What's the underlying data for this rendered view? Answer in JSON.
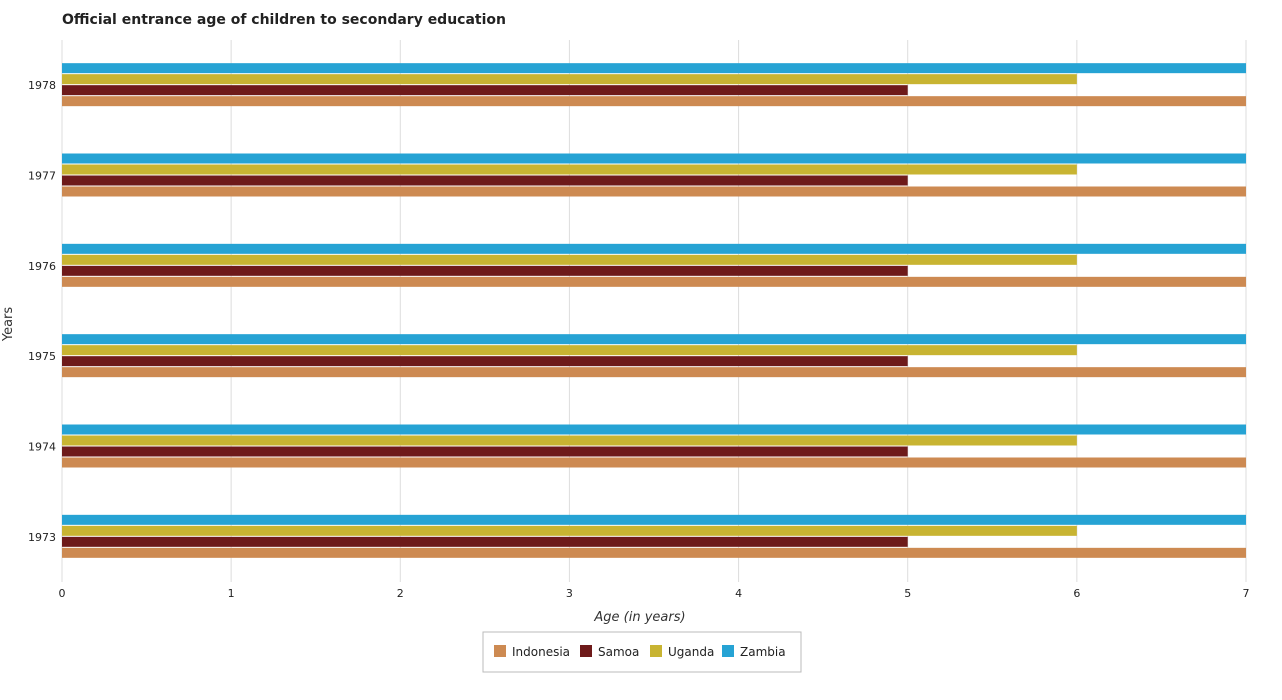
{
  "chart_data": {
    "type": "bar",
    "orientation": "horizontal",
    "title": "Official entrance age of children to secondary education",
    "xlabel": "Age (in years)",
    "ylabel": "Years",
    "xlim": [
      0,
      7
    ],
    "xticks": [
      "0",
      "1",
      "2",
      "3",
      "4",
      "5",
      "6",
      "7"
    ],
    "categories": [
      "1973",
      "1974",
      "1975",
      "1976",
      "1977",
      "1978"
    ],
    "series": [
      {
        "name": "Indonesia",
        "color": "#cd8a52",
        "values": [
          7,
          7,
          7,
          7,
          7,
          7
        ]
      },
      {
        "name": "Samoa",
        "color": "#6e1a1a",
        "values": [
          5,
          5,
          5,
          5,
          5,
          5
        ]
      },
      {
        "name": "Uganda",
        "color": "#c8b432",
        "values": [
          6,
          6,
          6,
          6,
          6,
          6
        ]
      },
      {
        "name": "Zambia",
        "color": "#26a3d4",
        "values": [
          7,
          7,
          7,
          7,
          7,
          7
        ]
      }
    ],
    "grid": "vertical",
    "legend_position": "bottom-center"
  }
}
